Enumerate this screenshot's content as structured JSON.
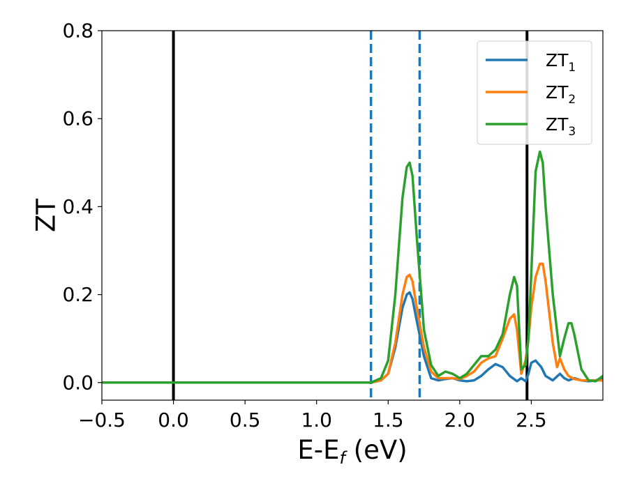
{
  "chart_data": {
    "type": "line",
    "title": "",
    "xlabel": {
      "main": "E-E",
      "sub": "f",
      "suffix": " (eV)"
    },
    "ylabel": "ZT",
    "xlim": [
      -0.5,
      3.0
    ],
    "ylim": [
      -0.04,
      0.8
    ],
    "x_ticks": [
      -0.5,
      0.0,
      0.5,
      1.0,
      1.5,
      2.0,
      2.5
    ],
    "x_tick_labels": [
      "−0.5",
      "0.0",
      "0.5",
      "1.0",
      "1.5",
      "2.0",
      "2.5"
    ],
    "y_ticks": [
      0.0,
      0.2,
      0.4,
      0.6,
      0.8
    ],
    "y_tick_labels": [
      "0.0",
      "0.2",
      "0.4",
      "0.6",
      "0.8"
    ],
    "grid": false,
    "legend_position": "top-right",
    "vertical_lines": [
      {
        "x": 0.0,
        "style": "solid",
        "color": "#000000"
      },
      {
        "x": 2.47,
        "style": "solid",
        "color": "#000000"
      },
      {
        "x": 1.38,
        "style": "dashed",
        "color": "#1f77b4"
      },
      {
        "x": 1.72,
        "style": "dashed",
        "color": "#1f77b4"
      }
    ],
    "series": [
      {
        "name": {
          "main": "ZT",
          "sub": "1"
        },
        "color": "#1f77b4",
        "x": [
          -0.5,
          1.38,
          1.45,
          1.5,
          1.55,
          1.6,
          1.63,
          1.65,
          1.67,
          1.7,
          1.75,
          1.8,
          1.85,
          1.9,
          1.95,
          2.0,
          2.05,
          2.1,
          2.15,
          2.2,
          2.25,
          2.3,
          2.35,
          2.4,
          2.43,
          2.46,
          2.48,
          2.5,
          2.53,
          2.57,
          2.6,
          2.65,
          2.7,
          2.73,
          2.76,
          2.8,
          2.85,
          2.9,
          2.95,
          3.0
        ],
        "y": [
          0.0,
          0.0,
          0.005,
          0.02,
          0.08,
          0.17,
          0.2,
          0.205,
          0.19,
          0.14,
          0.06,
          0.01,
          0.005,
          0.008,
          0.01,
          0.005,
          0.003,
          0.005,
          0.015,
          0.03,
          0.042,
          0.035,
          0.015,
          0.003,
          0.01,
          0.003,
          0.02,
          0.045,
          0.05,
          0.035,
          0.015,
          0.005,
          0.02,
          0.01,
          0.005,
          0.01,
          0.005,
          0.003,
          0.005,
          0.01
        ]
      },
      {
        "name": {
          "main": "ZT",
          "sub": "2"
        },
        "color": "#ff7f0e",
        "x": [
          -0.5,
          1.38,
          1.45,
          1.5,
          1.55,
          1.6,
          1.63,
          1.65,
          1.67,
          1.7,
          1.75,
          1.8,
          1.85,
          1.9,
          1.95,
          2.0,
          2.05,
          2.1,
          2.15,
          2.2,
          2.25,
          2.3,
          2.35,
          2.38,
          2.4,
          2.43,
          2.46,
          2.48,
          2.5,
          2.53,
          2.56,
          2.58,
          2.6,
          2.65,
          2.68,
          2.7,
          2.73,
          2.76,
          2.8,
          2.85,
          2.9,
          2.95,
          3.0
        ],
        "y": [
          0.0,
          0.0,
          0.005,
          0.02,
          0.09,
          0.2,
          0.24,
          0.245,
          0.23,
          0.17,
          0.08,
          0.025,
          0.01,
          0.01,
          0.01,
          0.008,
          0.015,
          0.025,
          0.045,
          0.055,
          0.06,
          0.1,
          0.145,
          0.155,
          0.12,
          0.02,
          0.05,
          0.1,
          0.17,
          0.24,
          0.27,
          0.27,
          0.23,
          0.09,
          0.035,
          0.055,
          0.03,
          0.015,
          0.008,
          0.005,
          0.005,
          0.005,
          0.005
        ]
      },
      {
        "name": {
          "main": "ZT",
          "sub": "3"
        },
        "color": "#2ca02c",
        "x": [
          -0.5,
          1.38,
          1.45,
          1.5,
          1.55,
          1.6,
          1.63,
          1.65,
          1.67,
          1.7,
          1.75,
          1.8,
          1.85,
          1.9,
          1.95,
          2.0,
          2.05,
          2.1,
          2.15,
          2.2,
          2.25,
          2.3,
          2.35,
          2.38,
          2.4,
          2.43,
          2.46,
          2.48,
          2.5,
          2.53,
          2.56,
          2.58,
          2.6,
          2.65,
          2.7,
          2.73,
          2.76,
          2.78,
          2.8,
          2.85,
          2.9,
          2.95,
          3.0
        ],
        "y": [
          0.0,
          0.0,
          0.01,
          0.05,
          0.2,
          0.42,
          0.49,
          0.5,
          0.47,
          0.33,
          0.12,
          0.04,
          0.015,
          0.025,
          0.02,
          0.01,
          0.02,
          0.04,
          0.06,
          0.06,
          0.075,
          0.11,
          0.2,
          0.24,
          0.22,
          0.03,
          0.04,
          0.1,
          0.25,
          0.48,
          0.525,
          0.5,
          0.4,
          0.2,
          0.06,
          0.1,
          0.135,
          0.135,
          0.11,
          0.03,
          0.005,
          0.003,
          0.015
        ]
      }
    ]
  }
}
